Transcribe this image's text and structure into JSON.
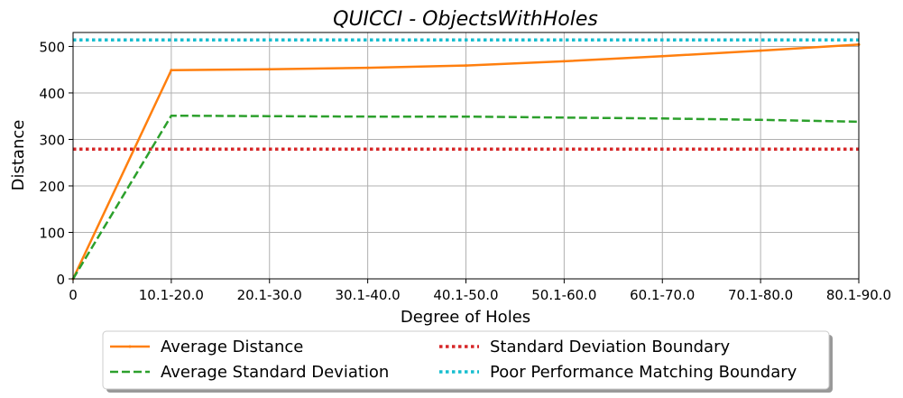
{
  "chart_data": {
    "type": "line",
    "title": "QUICCI - ObjectsWithHoles",
    "xlabel": "Degree of Holes",
    "ylabel": "Distance",
    "categories": [
      "0",
      "10.1-20.0",
      "20.1-30.0",
      "30.1-40.0",
      "40.1-50.0",
      "50.1-60.0",
      "60.1-70.0",
      "70.1-80.0",
      "80.1-90.0"
    ],
    "ylim": [
      0,
      530
    ],
    "yticks": [
      "0",
      "100",
      "200",
      "300",
      "400",
      "500"
    ],
    "grid": true,
    "legend_position": "bottom-center",
    "series": [
      {
        "name": "Average Distance",
        "values": [
          0,
          449,
          451,
          454,
          459,
          468,
          479,
          491,
          504
        ],
        "color": "#ff7f0e",
        "style": "solid"
      },
      {
        "name": "Average Standard Deviation",
        "values": [
          0,
          351,
          350,
          349,
          349,
          347,
          345,
          342,
          338
        ],
        "color": "#2ca02c",
        "style": "dashed"
      },
      {
        "name": "Standard Deviation Boundary",
        "values": [
          279,
          279,
          279,
          279,
          279,
          279,
          279,
          279,
          279
        ],
        "color": "#d62728",
        "style": "dotted"
      },
      {
        "name": "Poor Performance Matching Boundary",
        "values": [
          514,
          514,
          514,
          514,
          514,
          514,
          514,
          514,
          514
        ],
        "color": "#17becf",
        "style": "dotted"
      }
    ]
  }
}
